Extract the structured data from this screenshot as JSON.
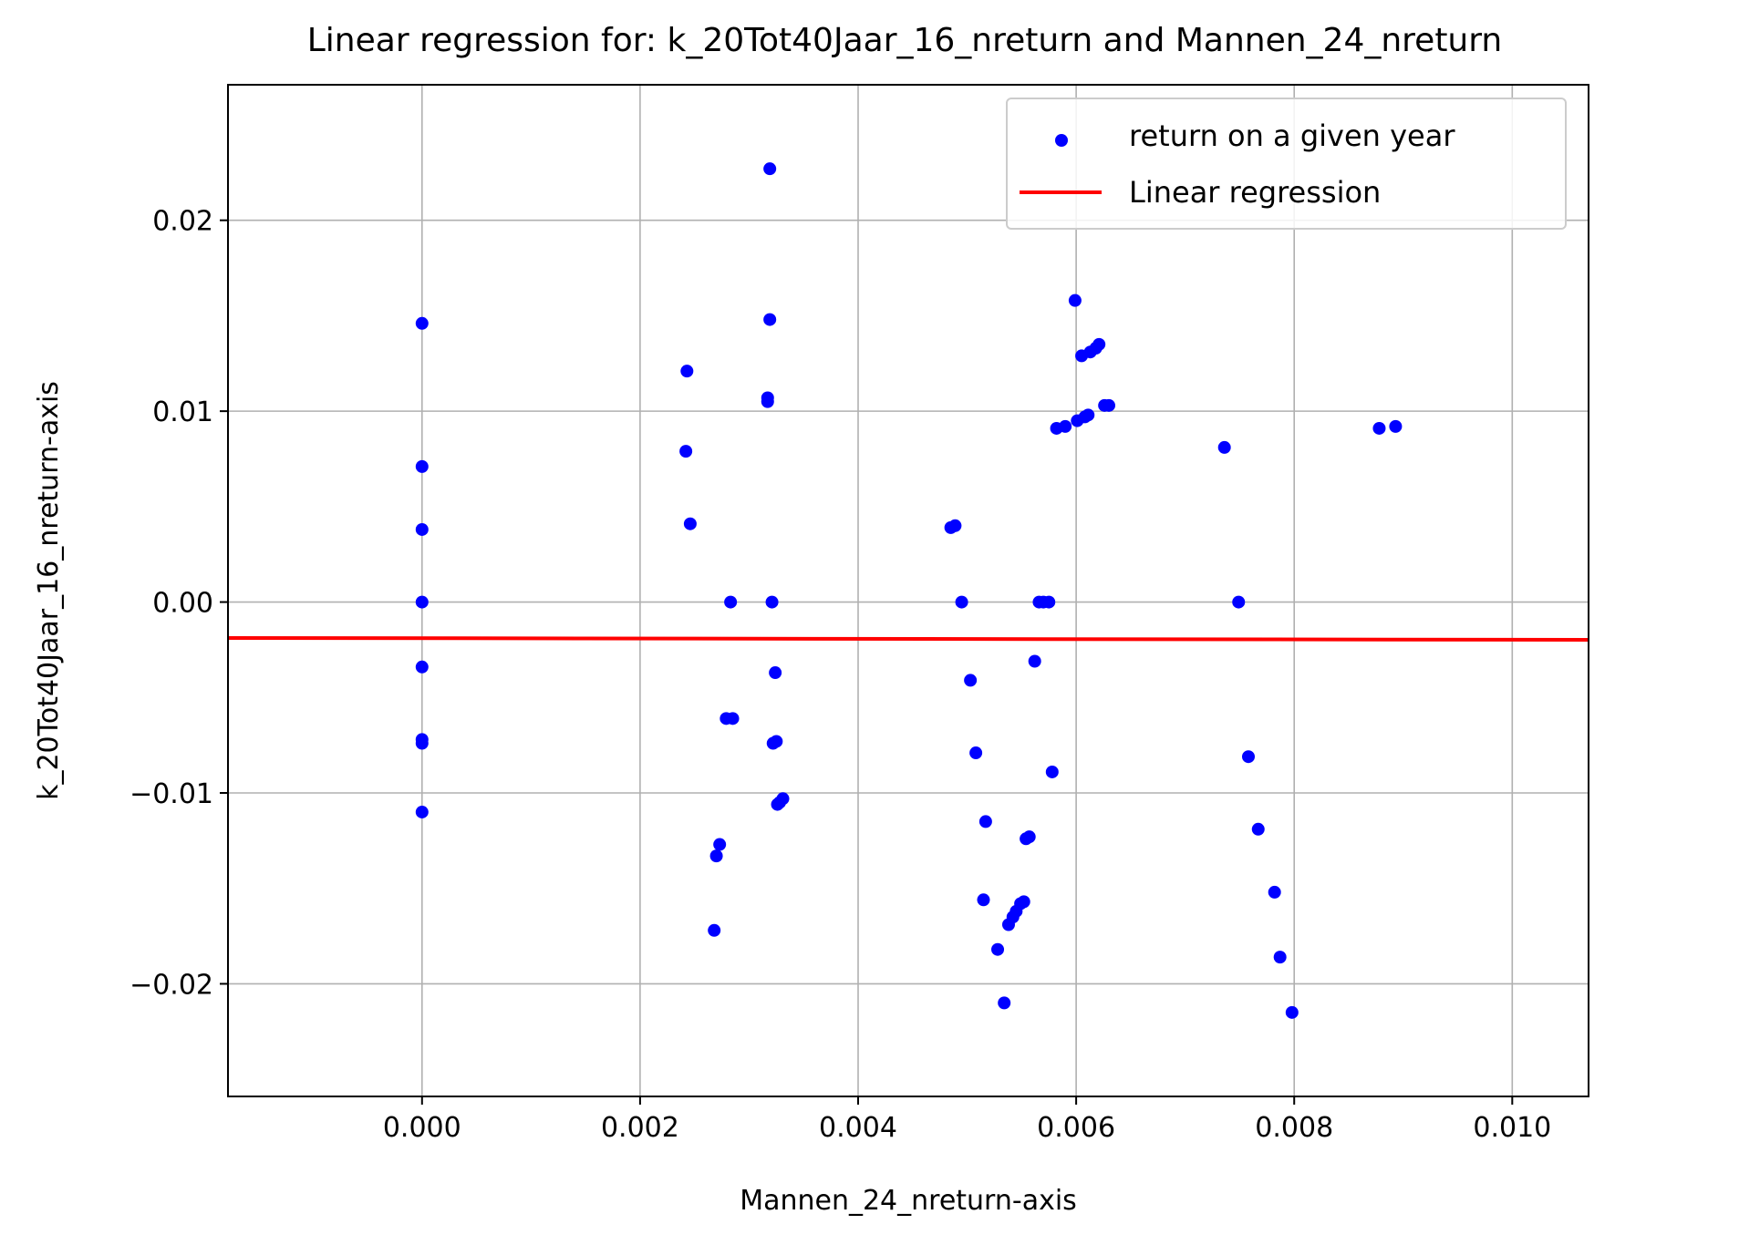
{
  "chart_data": {
    "type": "scatter",
    "title": "Linear regression for: k_20Tot40Jaar_16_nreturn and Mannen_24_nreturn",
    "xlabel": "Mannen_24_nreturn-axis",
    "ylabel": "k_20Tot40Jaar_16_nreturn-axis",
    "xlim": [
      -0.00178,
      0.0107
    ],
    "ylim": [
      -0.0259,
      0.0271
    ],
    "x_ticks": [
      0.0,
      0.002,
      0.004,
      0.006,
      0.008,
      0.01
    ],
    "x_tick_labels": [
      "0.000",
      "0.002",
      "0.004",
      "0.006",
      "0.008",
      "0.010"
    ],
    "y_ticks": [
      0.02,
      0.01,
      0.0,
      -0.01,
      -0.02
    ],
    "y_tick_labels": [
      "0.02",
      "0.01",
      "0.00",
      "−0.01",
      "−0.02"
    ],
    "grid": true,
    "legend_position": "top-right",
    "series": [
      {
        "name": "return on a given year",
        "kind": "scatter",
        "color": "#0000ff",
        "points": [
          [
            0.0,
            0.0146
          ],
          [
            0.0,
            0.0071
          ],
          [
            0.0,
            0.0038
          ],
          [
            0.0,
            0.0
          ],
          [
            0.0,
            -0.0034
          ],
          [
            0.0,
            -0.0072
          ],
          [
            0.0,
            -0.0074
          ],
          [
            0.0,
            -0.011
          ],
          [
            0.00242,
            0.0079
          ],
          [
            0.00243,
            0.0121
          ],
          [
            0.00246,
            0.0041
          ],
          [
            0.00268,
            -0.0172
          ],
          [
            0.0027,
            -0.0133
          ],
          [
            0.00273,
            -0.0127
          ],
          [
            0.00279,
            -0.0061
          ],
          [
            0.00285,
            -0.0061
          ],
          [
            0.00283,
            0.0
          ],
          [
            0.00317,
            0.0105
          ],
          [
            0.00317,
            0.0107
          ],
          [
            0.00319,
            0.0148
          ],
          [
            0.00319,
            0.0227
          ],
          [
            0.00321,
            0.0
          ],
          [
            0.00322,
            -0.0074
          ],
          [
            0.00324,
            -0.0037
          ],
          [
            0.00325,
            -0.0073
          ],
          [
            0.00326,
            -0.0106
          ],
          [
            0.00328,
            -0.0105
          ],
          [
            0.00331,
            -0.0103
          ],
          [
            0.00485,
            0.0039
          ],
          [
            0.00489,
            0.004
          ],
          [
            0.00495,
            0.0
          ],
          [
            0.00503,
            -0.0041
          ],
          [
            0.00508,
            -0.0079
          ],
          [
            0.00515,
            -0.0156
          ],
          [
            0.00517,
            -0.0115
          ],
          [
            0.00528,
            -0.0182
          ],
          [
            0.00534,
            -0.021
          ],
          [
            0.00538,
            -0.0169
          ],
          [
            0.00542,
            -0.0165
          ],
          [
            0.00545,
            -0.0162
          ],
          [
            0.00549,
            -0.0158
          ],
          [
            0.00552,
            -0.0157
          ],
          [
            0.00554,
            -0.0124
          ],
          [
            0.00557,
            -0.0123
          ],
          [
            0.00562,
            -0.0031
          ],
          [
            0.00566,
            0.0
          ],
          [
            0.0057,
            0.0
          ],
          [
            0.00575,
            0.0
          ],
          [
            0.00578,
            -0.0089
          ],
          [
            0.00582,
            0.0091
          ],
          [
            0.0059,
            0.0092
          ],
          [
            0.00599,
            0.0158
          ],
          [
            0.00601,
            0.0095
          ],
          [
            0.00605,
            0.0129
          ],
          [
            0.00608,
            0.0097
          ],
          [
            0.00611,
            0.0098
          ],
          [
            0.00613,
            0.0131
          ],
          [
            0.00618,
            0.0133
          ],
          [
            0.00621,
            0.0135
          ],
          [
            0.00626,
            0.0103
          ],
          [
            0.0063,
            0.0103
          ],
          [
            0.00736,
            0.0081
          ],
          [
            0.00749,
            0.0
          ],
          [
            0.00758,
            -0.0081
          ],
          [
            0.00767,
            -0.0119
          ],
          [
            0.00782,
            -0.0152
          ],
          [
            0.00787,
            -0.0186
          ],
          [
            0.00798,
            -0.0215
          ],
          [
            0.00878,
            0.0091
          ],
          [
            0.00893,
            0.0092
          ]
        ]
      },
      {
        "name": "Linear regression",
        "kind": "line",
        "color": "#ff0000",
        "points": [
          [
            -0.00178,
            -0.00188
          ],
          [
            0.0107,
            -0.00198
          ]
        ]
      }
    ]
  }
}
